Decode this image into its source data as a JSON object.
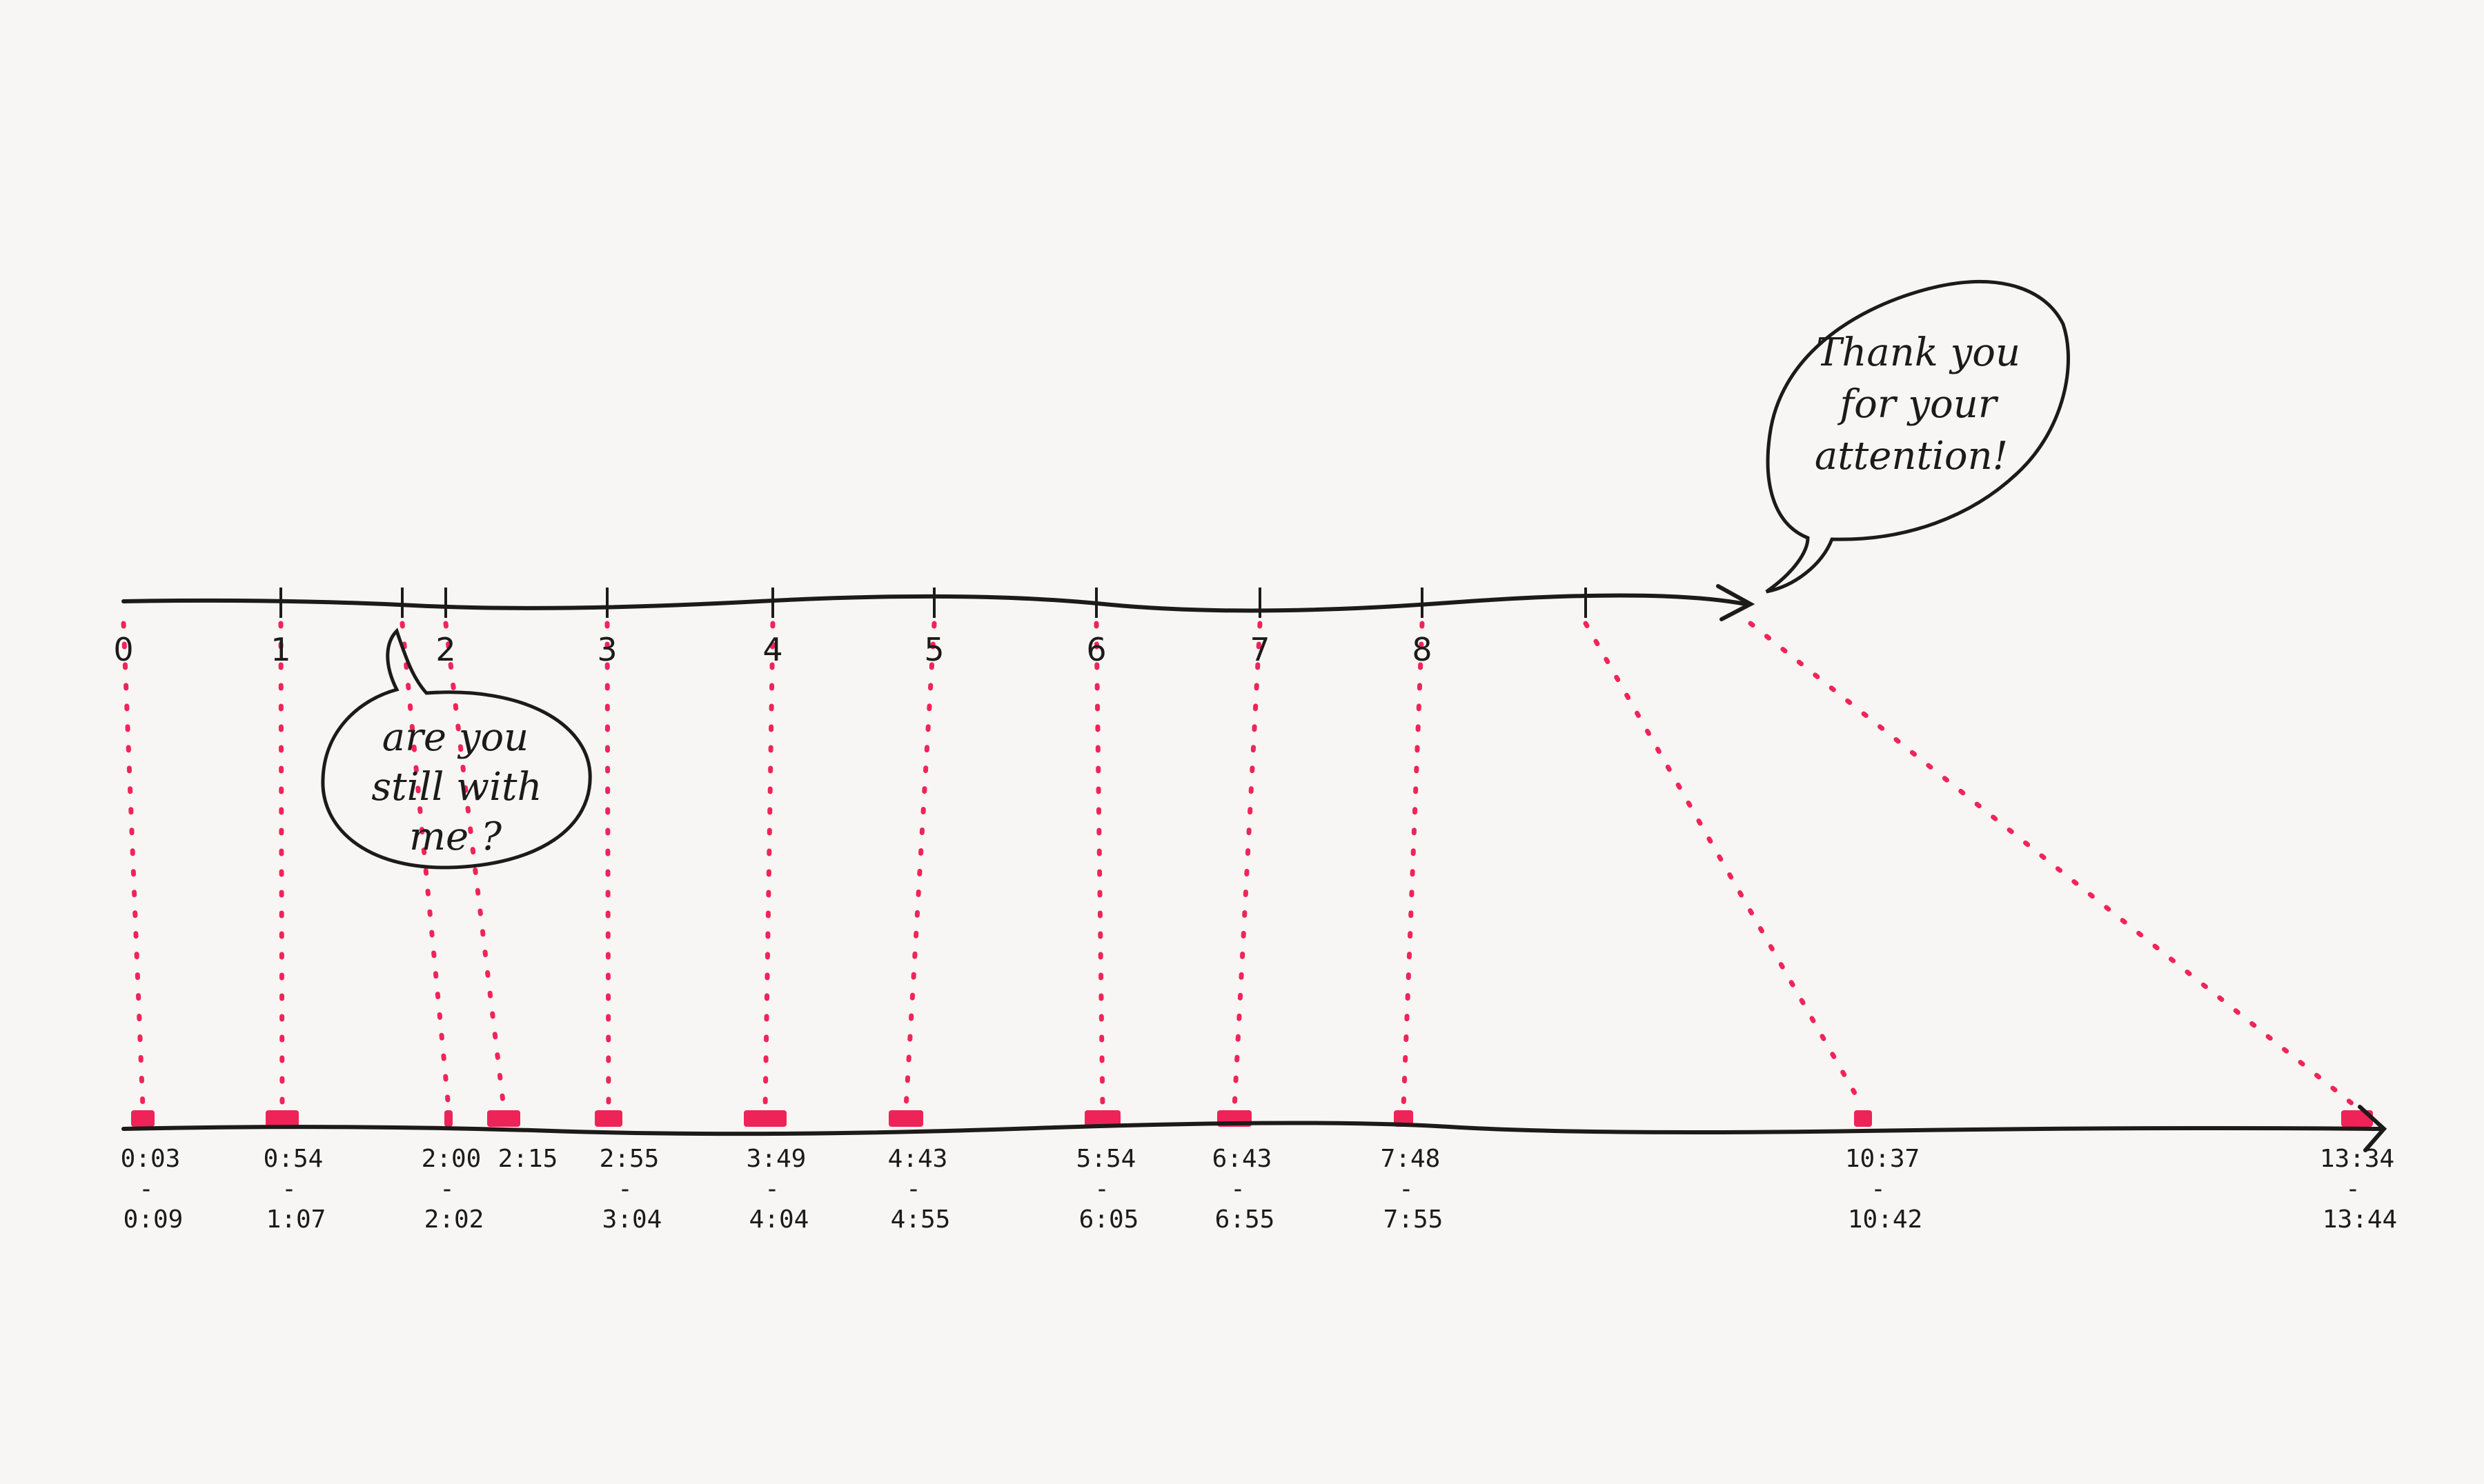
{
  "top_axis": {
    "labels": [
      "0",
      "1",
      "2",
      "3",
      "4",
      "5",
      "6",
      "7",
      "8"
    ]
  },
  "bottom_axis": {
    "labels": [
      {
        "start": "0:03",
        "sep": "-",
        "end": "0:09"
      },
      {
        "start": "0:54",
        "sep": "-",
        "end": "1:07"
      },
      {
        "start": "2:00",
        "sep": "-",
        "end": "2:02"
      },
      {
        "start": "2:15",
        "sep": "",
        "end": ""
      },
      {
        "start": "2:55",
        "sep": "-",
        "end": "3:04"
      },
      {
        "start": "3:49",
        "sep": "-",
        "end": "4:04"
      },
      {
        "start": "4:43",
        "sep": "-",
        "end": "4:55"
      },
      {
        "start": "5:54",
        "sep": "-",
        "end": "6:05"
      },
      {
        "start": "6:43",
        "sep": "-",
        "end": "6:55"
      },
      {
        "start": "7:48",
        "sep": "-",
        "end": "7:55"
      },
      {
        "start": "10:37",
        "sep": "-",
        "end": "10:42"
      },
      {
        "start": "13:34",
        "sep": "-",
        "end": "13:44"
      }
    ]
  },
  "bubbles": {
    "still_with_me": [
      "are you",
      "still with",
      "me ?"
    ],
    "thank_you": [
      "Thank you",
      "for your",
      "attention!"
    ]
  },
  "colors": {
    "ink": "#1d1a1a",
    "highlight": "#ee2458",
    "paper": "#f7f6f4"
  }
}
